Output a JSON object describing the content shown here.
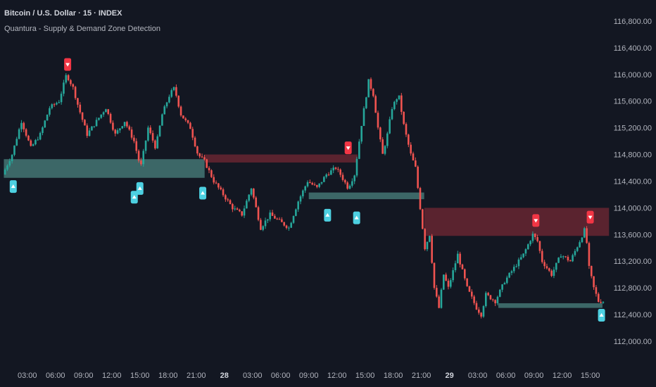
{
  "header": {
    "title": "Bitcoin / U.S. Dollar · 15 · INDEX",
    "indicator": "Quantura - Supply & Demand Zone Detection"
  },
  "colors": {
    "background": "#131722",
    "up": "#26a69a",
    "down": "#ef5350",
    "demand_zone": "#3e6b6b",
    "supply_zone": "#5e2430",
    "buy_marker": "#4dd0e1",
    "sell_marker": "#f23645",
    "axis_text": "#b2b5be"
  },
  "chart_data": {
    "type": "candlestick",
    "symbol": "Bitcoin / U.S. Dollar",
    "interval": "15",
    "exchange": "INDEX",
    "ylim": [
      111900,
      116900
    ],
    "y_ticks": [
      112000,
      112400,
      112800,
      113200,
      113600,
      114000,
      114400,
      114800,
      115200,
      115600,
      116000,
      116400,
      116800
    ],
    "y_tick_labels": [
      "112,000.00",
      "112,400.00",
      "112,800.00",
      "113,200.00",
      "113,600.00",
      "114,000.00",
      "114,400.00",
      "114,800.00",
      "115,200.00",
      "115,600.00",
      "116,000.00",
      "116,400.00",
      "116,800.00"
    ],
    "x_ticks": [
      {
        "hours": 3,
        "label": "03:00",
        "bold": false
      },
      {
        "hours": 6,
        "label": "06:00",
        "bold": false
      },
      {
        "hours": 9,
        "label": "09:00",
        "bold": false
      },
      {
        "hours": 12,
        "label": "12:00",
        "bold": false
      },
      {
        "hours": 15,
        "label": "15:00",
        "bold": false
      },
      {
        "hours": 18,
        "label": "18:00",
        "bold": false
      },
      {
        "hours": 21,
        "label": "21:00",
        "bold": false
      },
      {
        "hours": 24,
        "label": "28",
        "bold": true
      },
      {
        "hours": 27,
        "label": "03:00",
        "bold": false
      },
      {
        "hours": 30,
        "label": "06:00",
        "bold": false
      },
      {
        "hours": 33,
        "label": "09:00",
        "bold": false
      },
      {
        "hours": 36,
        "label": "12:00",
        "bold": false
      },
      {
        "hours": 39,
        "label": "15:00",
        "bold": false
      },
      {
        "hours": 42,
        "label": "18:00",
        "bold": false
      },
      {
        "hours": 45,
        "label": "21:00",
        "bold": false
      },
      {
        "hours": 48,
        "label": "29",
        "bold": true
      },
      {
        "hours": 51,
        "label": "03:00",
        "bold": false
      },
      {
        "hours": 54,
        "label": "06:00",
        "bold": false
      },
      {
        "hours": 57,
        "label": "09:00",
        "bold": false
      },
      {
        "hours": 60,
        "label": "12:00",
        "bold": false
      },
      {
        "hours": 63,
        "label": "15:00",
        "bold": false
      }
    ],
    "x_range_hours": [
      0.5,
      65.0
    ],
    "price_path": [
      [
        0.5,
        114500
      ],
      [
        1.5,
        114800
      ],
      [
        2.5,
        115300
      ],
      [
        3.5,
        114900
      ],
      [
        4.5,
        115100
      ],
      [
        5.5,
        115500
      ],
      [
        6.5,
        115600
      ],
      [
        7.3,
        116000
      ],
      [
        8.0,
        115800
      ],
      [
        8.6,
        115500
      ],
      [
        9.5,
        115100
      ],
      [
        10.5,
        115300
      ],
      [
        11.5,
        115500
      ],
      [
        12.5,
        115100
      ],
      [
        13.5,
        115300
      ],
      [
        14.5,
        115000
      ],
      [
        15.2,
        114600
      ],
      [
        16.0,
        115200
      ],
      [
        16.8,
        114900
      ],
      [
        17.5,
        115400
      ],
      [
        18.3,
        115700
      ],
      [
        18.8,
        115800
      ],
      [
        19.5,
        115400
      ],
      [
        20.5,
        115200
      ],
      [
        21.3,
        114800
      ],
      [
        22.0,
        114700
      ],
      [
        23.0,
        114400
      ],
      [
        24.0,
        114200
      ],
      [
        25.0,
        114000
      ],
      [
        26.0,
        113900
      ],
      [
        27.0,
        114300
      ],
      [
        28.0,
        113700
      ],
      [
        29.0,
        113900
      ],
      [
        30.0,
        113800
      ],
      [
        31.0,
        113700
      ],
      [
        32.0,
        114100
      ],
      [
        33.0,
        114400
      ],
      [
        34.0,
        114300
      ],
      [
        35.0,
        114500
      ],
      [
        36.0,
        114600
      ],
      [
        36.5,
        114500
      ],
      [
        37.3,
        114300
      ],
      [
        38.0,
        114500
      ],
      [
        38.8,
        115300
      ],
      [
        39.5,
        115900
      ],
      [
        40.0,
        115700
      ],
      [
        40.5,
        115200
      ],
      [
        41.0,
        114800
      ],
      [
        41.5,
        115100
      ],
      [
        42.0,
        115500
      ],
      [
        42.7,
        115700
      ],
      [
        43.3,
        115200
      ],
      [
        44.0,
        114800
      ],
      [
        44.5,
        114600
      ],
      [
        45.0,
        114000
      ],
      [
        45.5,
        113400
      ],
      [
        46.0,
        113600
      ],
      [
        46.5,
        112800
      ],
      [
        47.0,
        112500
      ],
      [
        47.5,
        113000
      ],
      [
        48.0,
        112800
      ],
      [
        49.0,
        113300
      ],
      [
        50.0,
        112800
      ],
      [
        51.0,
        112500
      ],
      [
        51.5,
        112400
      ],
      [
        52.0,
        112700
      ],
      [
        53.0,
        112600
      ],
      [
        54.0,
        112900
      ],
      [
        55.0,
        113100
      ],
      [
        56.0,
        113300
      ],
      [
        57.0,
        113600
      ],
      [
        57.5,
        113500
      ],
      [
        58.0,
        113200
      ],
      [
        59.0,
        113000
      ],
      [
        60.0,
        113300
      ],
      [
        61.0,
        113200
      ],
      [
        62.0,
        113500
      ],
      [
        62.6,
        113700
      ],
      [
        63.0,
        113100
      ],
      [
        63.5,
        112800
      ],
      [
        64.0,
        112600
      ]
    ],
    "zones": [
      {
        "kind": "demand",
        "top": 114730,
        "bottom": 114450,
        "start": 0.5,
        "end": 21.9
      },
      {
        "kind": "supply",
        "top": 114800,
        "bottom": 114680,
        "start": 21.9,
        "end": 38.2
      },
      {
        "kind": "demand",
        "top": 114230,
        "bottom": 114130,
        "start": 33.0,
        "end": 45.3
      },
      {
        "kind": "supply",
        "top": 114000,
        "bottom": 113580,
        "start": 45.3,
        "end": 65.0
      },
      {
        "kind": "demand",
        "top": 112570,
        "bottom": 112500,
        "start": 53.2,
        "end": 64.3
      }
    ],
    "signals": [
      {
        "kind": "buy",
        "hours": 1.5,
        "price": 114320
      },
      {
        "kind": "buy",
        "hours": 14.4,
        "price": 114160
      },
      {
        "kind": "buy",
        "hours": 15.0,
        "price": 114290
      },
      {
        "kind": "buy",
        "hours": 21.7,
        "price": 114220
      },
      {
        "kind": "buy",
        "hours": 35.0,
        "price": 113890
      },
      {
        "kind": "buy",
        "hours": 38.1,
        "price": 113850
      },
      {
        "kind": "buy",
        "hours": 64.2,
        "price": 112390
      },
      {
        "kind": "sell",
        "hours": 7.3,
        "price": 116150
      },
      {
        "kind": "sell",
        "hours": 37.2,
        "price": 114900
      },
      {
        "kind": "sell",
        "hours": 57.2,
        "price": 113810
      },
      {
        "kind": "sell",
        "hours": 63.0,
        "price": 113860
      }
    ]
  }
}
